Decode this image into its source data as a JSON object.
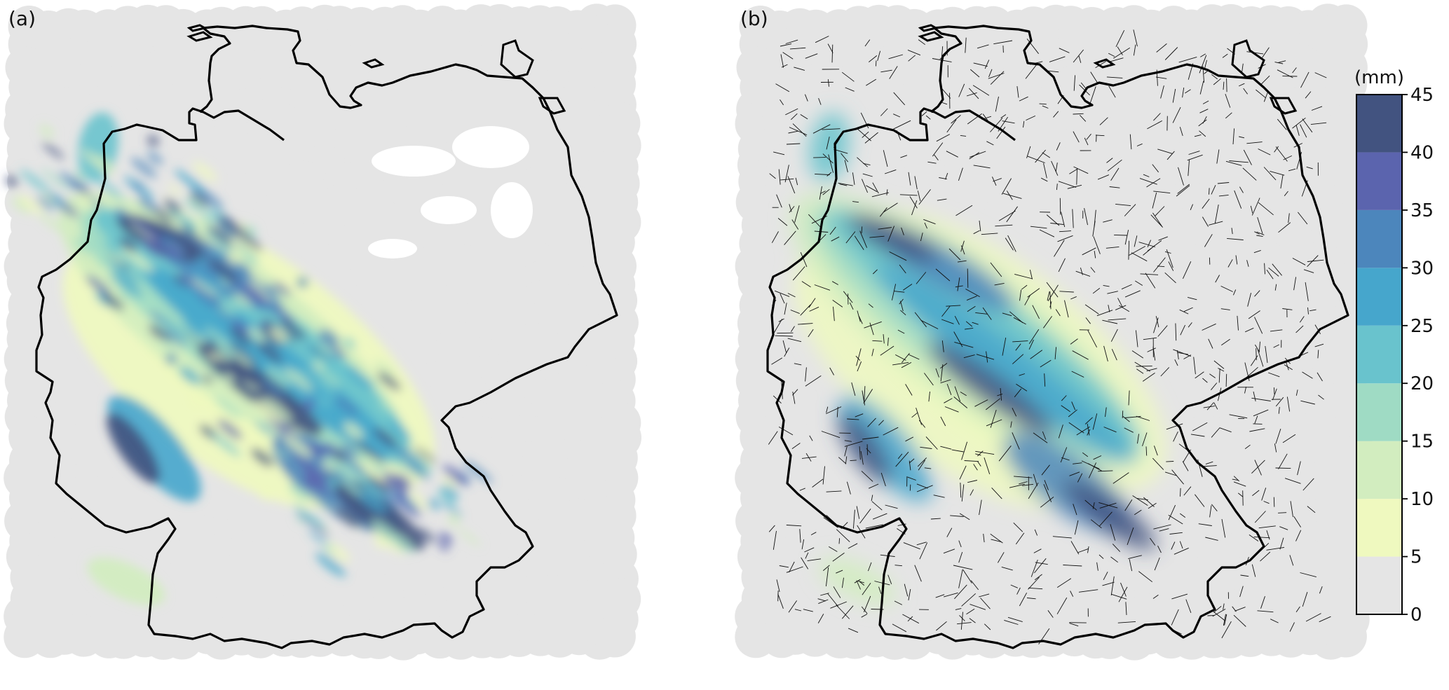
{
  "panels": [
    {
      "label": "(a)"
    },
    {
      "label": "(b)"
    }
  ],
  "colorbar": {
    "unit": "(mm)",
    "ticks": [
      0,
      5,
      10,
      15,
      20,
      25,
      30,
      35,
      40,
      45
    ],
    "vmin": 0,
    "vmax": 45,
    "colors": [
      "#e5e5e5",
      "#eff9bf",
      "#d2edbf",
      "#9fdbc4",
      "#69c3cd",
      "#46a6cc",
      "#4c86bc",
      "#5b64ae",
      "#425380"
    ]
  },
  "colors": {
    "border": "#000000",
    "buffer": "#e5e5e5",
    "streak_line": "#111111"
  }
}
